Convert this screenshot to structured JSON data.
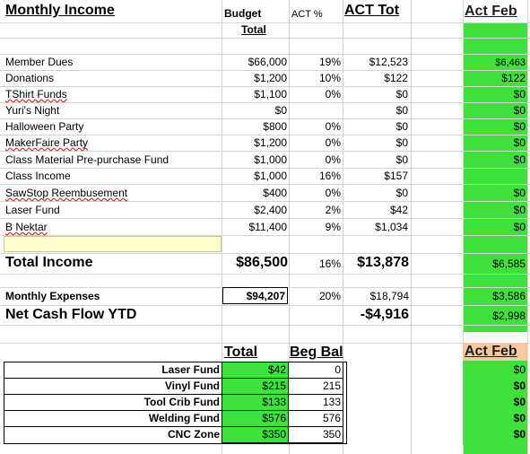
{
  "header": {
    "title": "Monthly Income",
    "budget": "Budget",
    "budget_total": "Total",
    "act_pct": "ACT %",
    "act_tot": "ACT Tot",
    "act_feb": "Act Feb"
  },
  "income_rows": [
    {
      "label": "Member Dues",
      "budget": "$66,000",
      "pct": "19%",
      "act": "$12,523",
      "feb": "$6,463"
    },
    {
      "label": "Donations",
      "budget": "$1,200",
      "pct": "10%",
      "act": "$122",
      "feb": "$122"
    },
    {
      "label": "TShirt Funds",
      "budget": "$1,100",
      "pct": "0%",
      "act": "$0",
      "feb": "$0"
    },
    {
      "label": "Yuri's Night",
      "budget": "$0",
      "pct": "",
      "act": "$0",
      "feb": "$0"
    },
    {
      "label": "Halloween Party",
      "budget": "$800",
      "pct": "0%",
      "act": "$0",
      "feb": "$0"
    },
    {
      "label": "MakerFaire Party",
      "budget": "$1,200",
      "pct": "0%",
      "act": "$0",
      "feb": "$0"
    },
    {
      "label": "Class Material Pre-purchase Fund",
      "budget": "$1,000",
      "pct": "0%",
      "act": "$0",
      "feb": "$0"
    },
    {
      "label": "Class Income",
      "budget": "$1,000",
      "pct": "16%",
      "act": "$157",
      "feb": ""
    },
    {
      "label": "SawStop Reembusement",
      "budget": "$400",
      "pct": "0%",
      "act": "$0",
      "feb": "$0"
    },
    {
      "label": "Laser Fund",
      "budget": "$2,400",
      "pct": "2%",
      "act": "$42",
      "feb": "$0"
    },
    {
      "label": "B Nektar",
      "budget": "$11,400",
      "pct": "9%",
      "act": "$1,034",
      "feb": "$0"
    }
  ],
  "totals": {
    "total_income_label": "Total Income",
    "total_income_budget": "$86,500",
    "total_income_pct": "16%",
    "total_income_act": "$13,878",
    "total_income_feb": "$6,585",
    "expenses_label": "Monthly Expenses",
    "expenses_budget": "$94,207",
    "expenses_pct": "20%",
    "expenses_act": "$18,794",
    "expenses_feb": "$3,586",
    "netflow_label": "Net Cash Flow YTD",
    "netflow_act": "-$4,916",
    "netflow_feb": "$2,998"
  },
  "funds": {
    "total_header": "Total",
    "beg_bal_header": "Beg Bal",
    "act_feb_header": "Act Feb",
    "rows": [
      {
        "label": "Laser Fund",
        "total": "$42",
        "beg": "0",
        "feb": "$0"
      },
      {
        "label": "Vinyl Fund",
        "total": "$215",
        "beg": "215",
        "feb": "$0"
      },
      {
        "label": "Tool Crib Fund",
        "total": "$133",
        "beg": "133",
        "feb": "$0"
      },
      {
        "label": "Welding Fund",
        "total": "$576",
        "beg": "576",
        "feb": "$0"
      },
      {
        "label": "CNC Zone",
        "total": "$350",
        "beg": "350",
        "feb": "$0"
      }
    ]
  },
  "colors": {
    "highlight_green": "#3fe23b",
    "input_yellow": "#ffffcc",
    "gridline": "#d4d4d4"
  }
}
